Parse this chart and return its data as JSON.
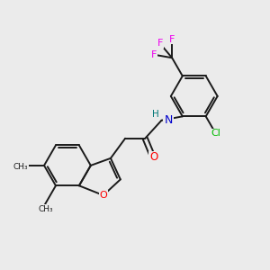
{
  "background_color": "#ebebeb",
  "bond_color": "#1a1a1a",
  "atom_colors": {
    "O": "#ff0000",
    "N": "#0000cc",
    "Cl": "#00bb00",
    "F": "#ee00ee",
    "H": "#007777",
    "C": "#1a1a1a"
  },
  "lw": 1.4
}
